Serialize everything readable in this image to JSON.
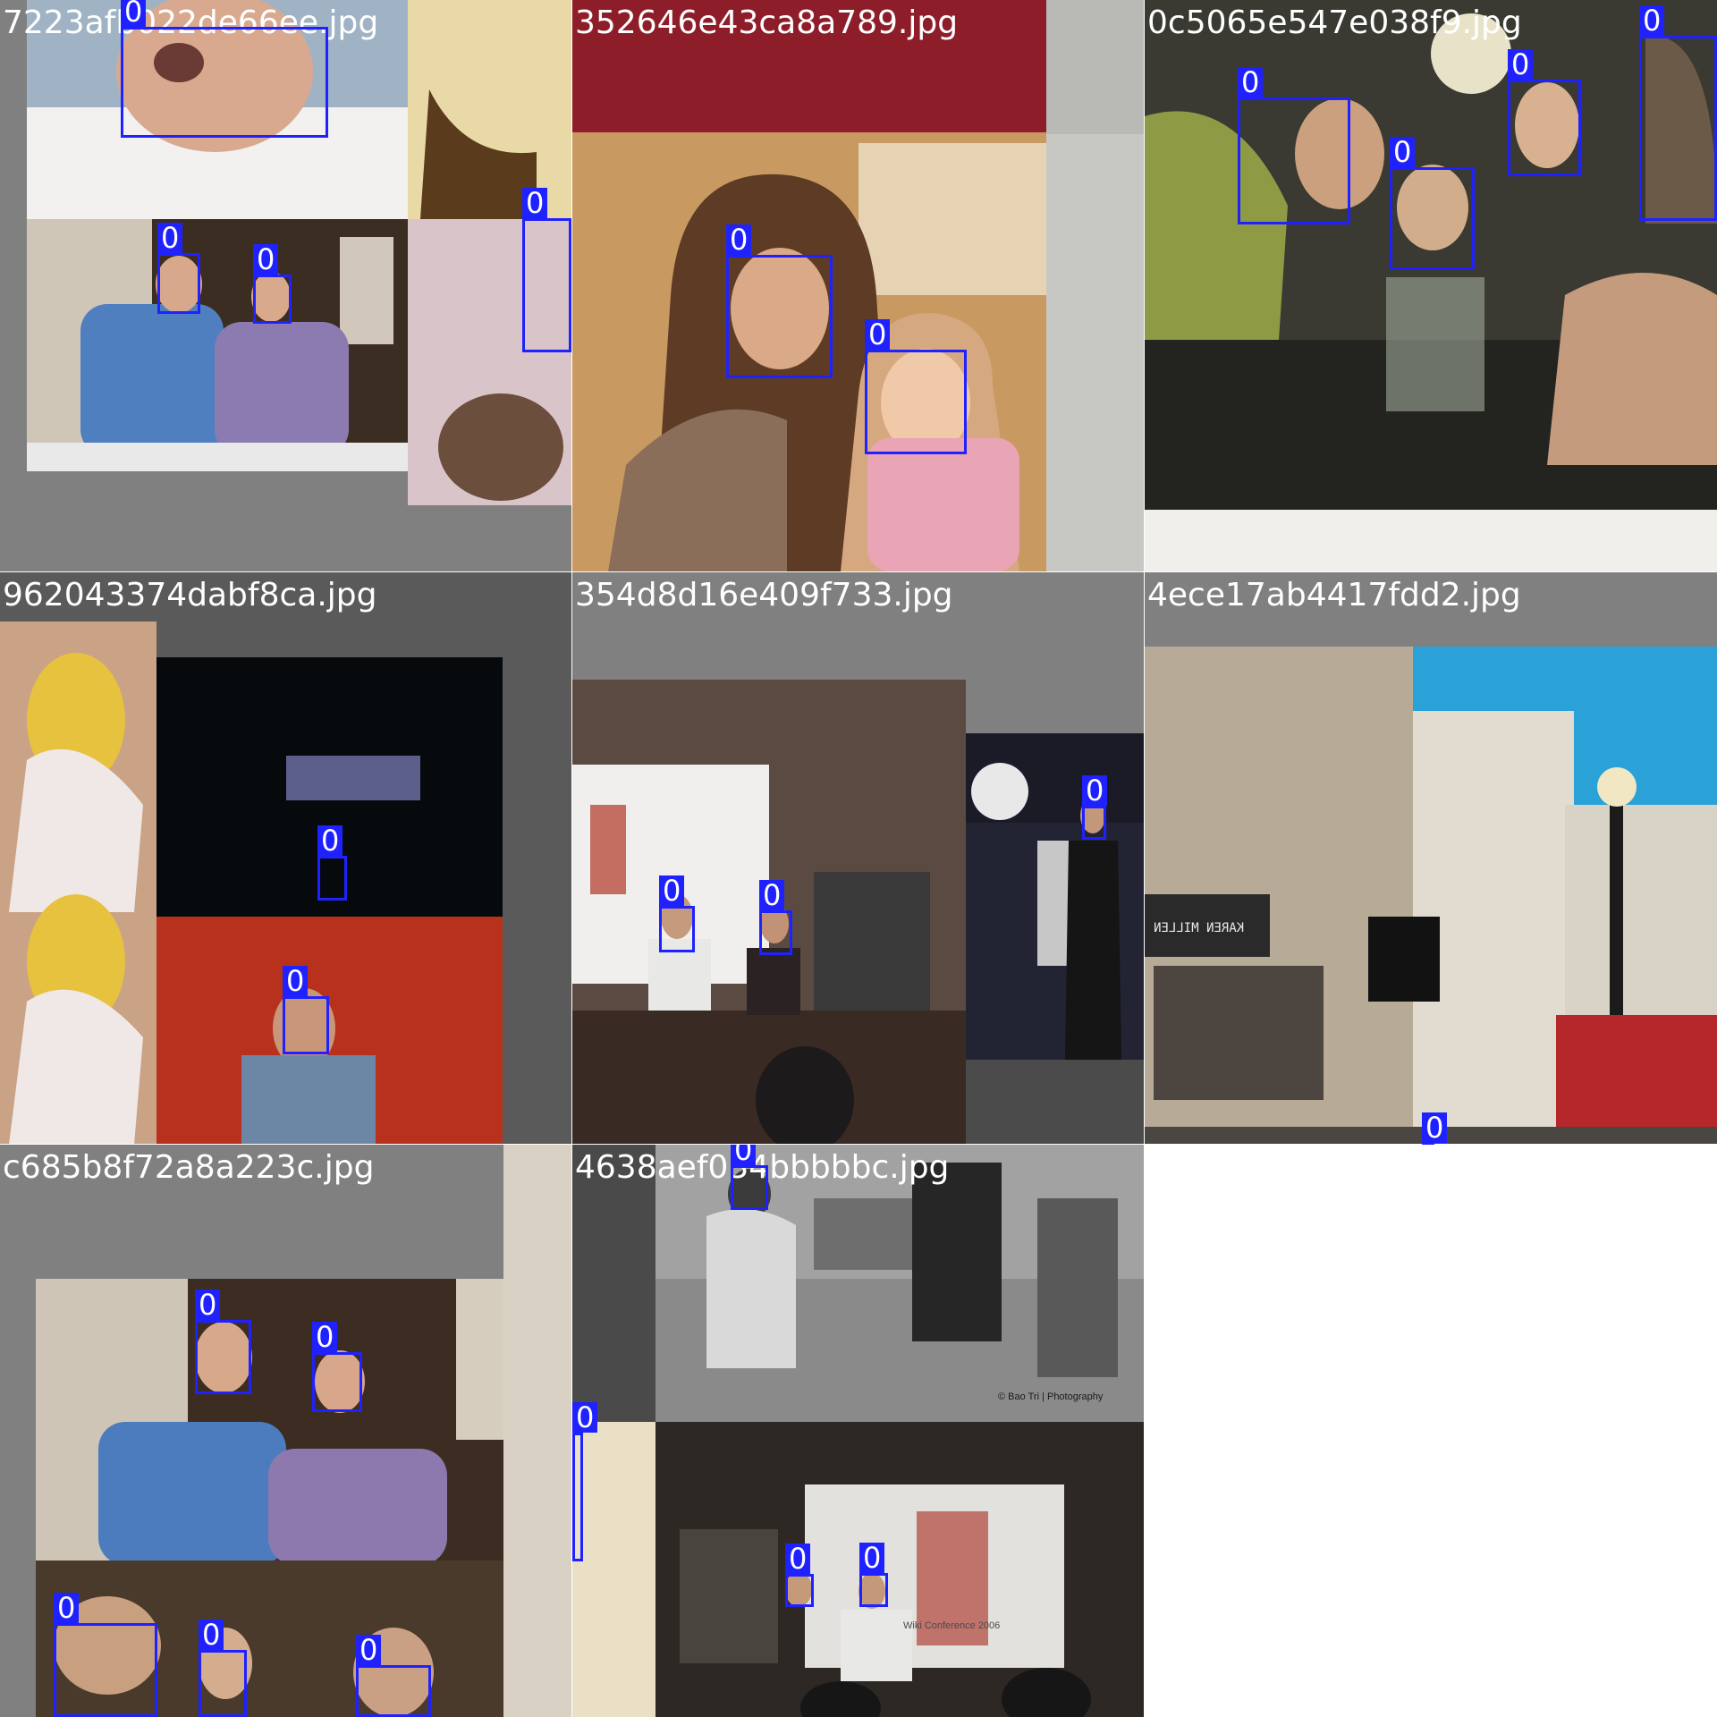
{
  "image": {
    "kind": "object detection training mosaic grid",
    "grid": "3 columns x 3 rows, 8 tiles",
    "annotation_color": "#1f22ff",
    "label_color": "#ffffff"
  },
  "tiles": [
    {
      "filename": "7223afb022de66ee.jpg",
      "labels": [
        "0",
        "0",
        "0",
        "0"
      ]
    },
    {
      "filename": "352646e43ca8a789.jpg",
      "labels": [
        "0",
        "0"
      ]
    },
    {
      "filename": "0c5065e547e038f9.jpg",
      "labels": [
        "0",
        "0",
        "0",
        "0"
      ]
    },
    {
      "filename": "962043374dabf8ca.jpg",
      "labels": [
        "0",
        "0"
      ]
    },
    {
      "filename": "354d8d16e409f733.jpg",
      "labels": [
        "0",
        "0",
        "0"
      ]
    },
    {
      "filename": "4ece17ab4417fdd2.jpg",
      "labels": [
        "0"
      ]
    },
    {
      "filename": "c685b8f72a8a223c.jpg",
      "labels": [
        "0",
        "0",
        "0",
        "0",
        "0"
      ]
    },
    {
      "filename": "4638aef034bbbbbc.jpg",
      "labels": [
        "0",
        "0",
        "0",
        "0"
      ]
    }
  ],
  "visible_text": {
    "store_sign": "KAREN MILLEN",
    "credit": "© Bao Tri | Photography",
    "screen_caption": "Wiki Conference 2006"
  }
}
